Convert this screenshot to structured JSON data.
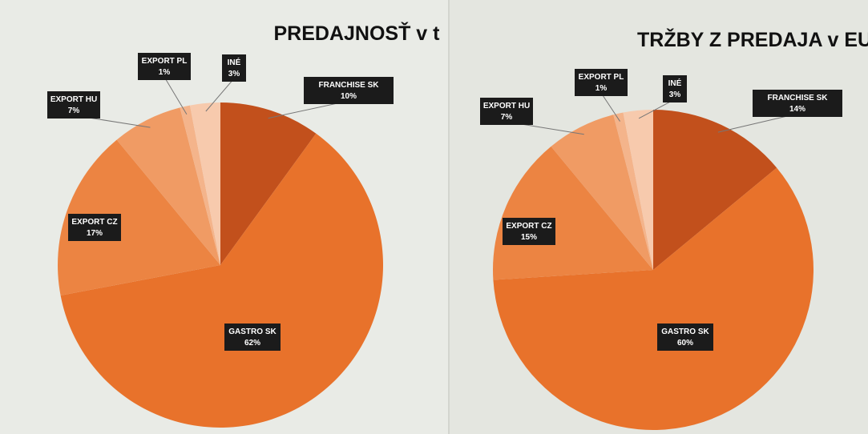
{
  "chart_data": [
    {
      "type": "pie",
      "title": "PREDAJNOSŤ v t",
      "categories": [
        "FRANCHISE SK",
        "GASTRO SK",
        "EXPORT CZ",
        "EXPORT HU",
        "EXPORT PL",
        "INÉ"
      ],
      "values": [
        10,
        62,
        17,
        7,
        1,
        3
      ],
      "value_labels": [
        "10%",
        "62%",
        "17%",
        "7%",
        "1%",
        "3%"
      ],
      "colors": [
        "#c2501c",
        "#e8722b",
        "#ec8442",
        "#f09b64",
        "#f4b48b",
        "#f7caad"
      ]
    },
    {
      "type": "pie",
      "title": "TRŽBY Z PREDAJA v EUR",
      "categories": [
        "FRANCHISE SK",
        "GASTRO SK",
        "EXPORT CZ",
        "EXPORT HU",
        "EXPORT PL",
        "INÉ"
      ],
      "values": [
        14,
        60,
        15,
        7,
        1,
        3
      ],
      "value_labels": [
        "14%",
        "60%",
        "15%",
        "7%",
        "1%",
        "3%"
      ],
      "colors": [
        "#c2501c",
        "#e8722b",
        "#ec8442",
        "#f09b64",
        "#f4b48b",
        "#f7caad"
      ]
    }
  ]
}
